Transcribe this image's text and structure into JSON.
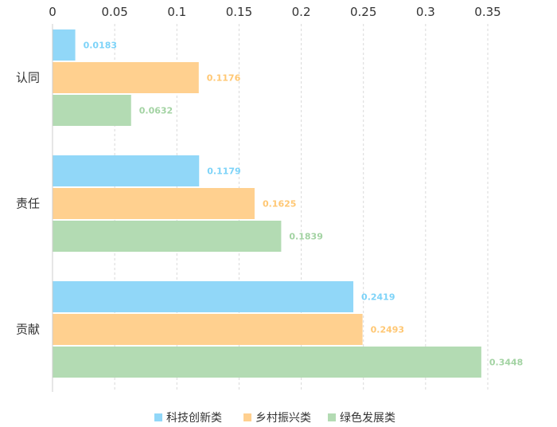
{
  "chart_data": {
    "type": "bar",
    "orientation": "horizontal",
    "categories": [
      "认同",
      "责任",
      "贡献"
    ],
    "series": [
      {
        "name": "科技创新类",
        "color": "#91D7F8",
        "labelColor": "#7DD3F8",
        "values": [
          0.0183,
          0.1179,
          0.2419
        ],
        "labels": [
          "0.0183",
          "0.1179",
          "0.2419"
        ]
      },
      {
        "name": "乡村振兴类",
        "color": "#FFD08F",
        "labelColor": "#FFC773",
        "values": [
          0.1176,
          0.1625,
          0.2493
        ],
        "labels": [
          "0.1176",
          "0.1625",
          "0.2493"
        ]
      },
      {
        "name": "绿色发展类",
        "color": "#B3DBB3",
        "labelColor": "#A3D3A3",
        "values": [
          0.0632,
          0.1839,
          0.3448
        ],
        "labels": [
          "0.0632",
          "0.1839",
          "0.3448"
        ]
      }
    ],
    "xlim": [
      0,
      0.35
    ],
    "ticks": [
      0,
      0.05,
      0.1,
      0.15,
      0.2,
      0.25,
      0.3,
      0.35
    ],
    "tick_labels": [
      "0",
      "0.05",
      "0.1",
      "0.15",
      "0.2",
      "0.25",
      "0.3",
      "0.35"
    ],
    "axis_position": "top",
    "grid": true,
    "legend_position": "bottom-center"
  }
}
